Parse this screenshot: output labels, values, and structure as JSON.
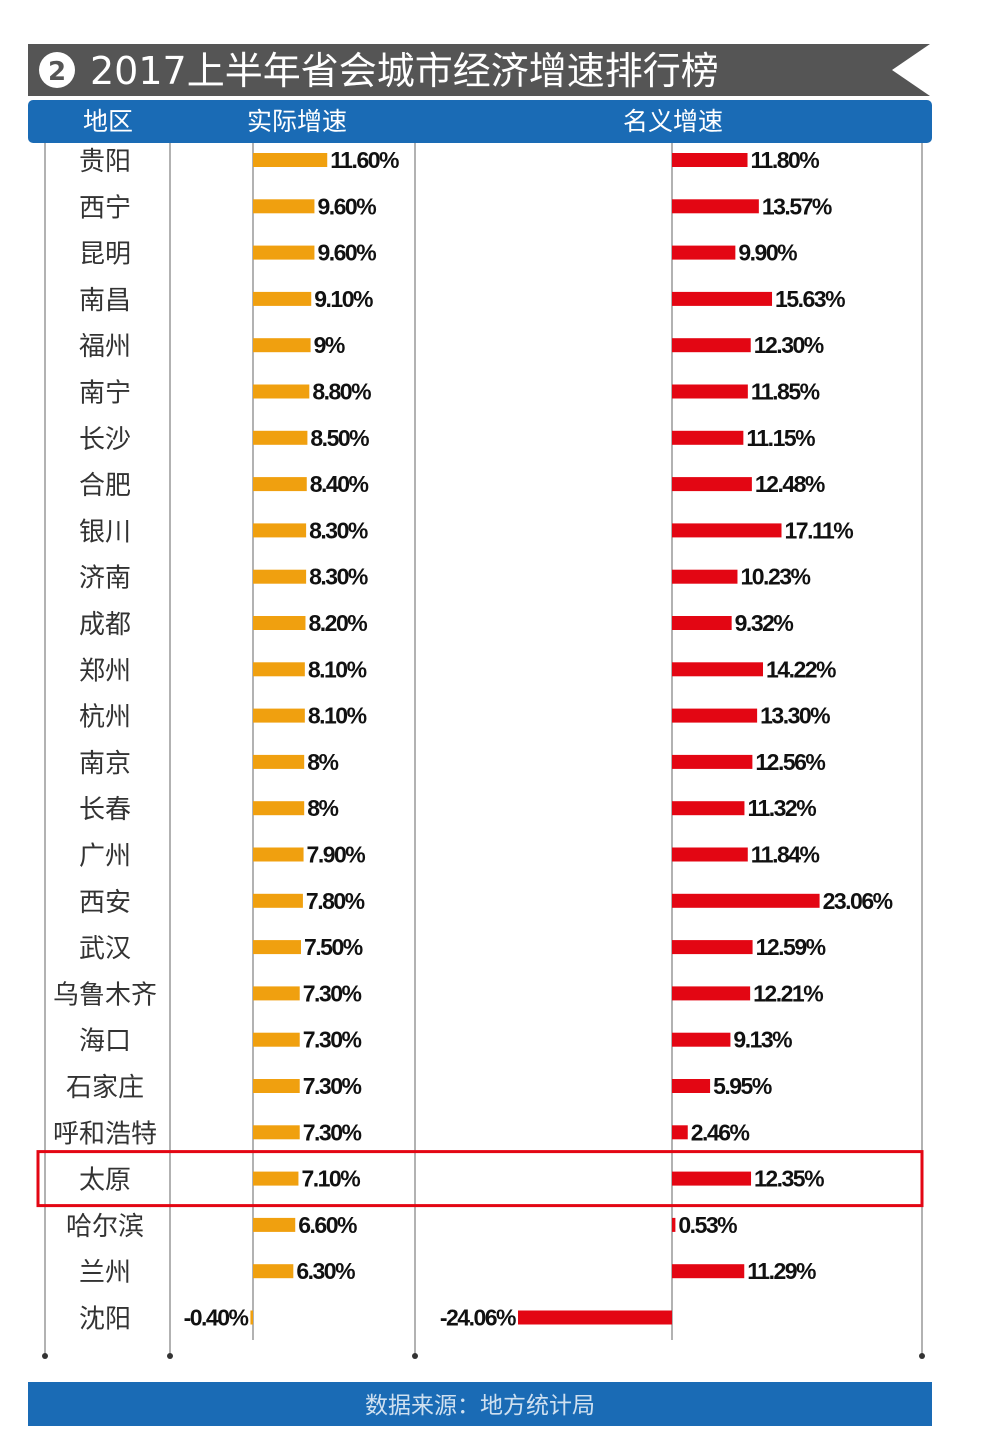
{
  "chart_data": {
    "type": "bar",
    "title": "2017上半年省会城市经济增速排行榜",
    "title_badge": "2",
    "headers": {
      "region": "地区",
      "actual": "实际增速",
      "nominal": "名义增速"
    },
    "categories": [
      "贵阳",
      "西宁",
      "昆明",
      "南昌",
      "福州",
      "南宁",
      "长沙",
      "合肥",
      "银川",
      "济南",
      "成都",
      "郑州",
      "杭州",
      "南京",
      "长春",
      "广州",
      "西安",
      "武汉",
      "乌鲁木齐",
      "海口",
      "石家庄",
      "呼和浩特",
      "太原",
      "哈尔滨",
      "兰州",
      "沈阳"
    ],
    "series": [
      {
        "name": "实际增速",
        "color": "#f0a00f",
        "values": [
          11.6,
          9.6,
          9.6,
          9.1,
          9,
          8.8,
          8.5,
          8.4,
          8.3,
          8.3,
          8.2,
          8.1,
          8.1,
          8,
          8,
          7.9,
          7.8,
          7.5,
          7.3,
          7.3,
          7.3,
          7.3,
          7.1,
          6.6,
          6.3,
          -0.4
        ],
        "labels": [
          "11.60%",
          "9.60%",
          "9.60%",
          "9.10%",
          "9%",
          "8.80%",
          "8.50%",
          "8.40%",
          "8.30%",
          "8.30%",
          "8.20%",
          "8.10%",
          "8.10%",
          "8%",
          "8%",
          "7.90%",
          "7.80%",
          "7.50%",
          "7.30%",
          "7.30%",
          "7.30%",
          "7.30%",
          "7.10%",
          "6.60%",
          "6.30%",
          "-0.40%"
        ]
      },
      {
        "name": "名义增速",
        "color": "#e30613",
        "values": [
          11.8,
          13.57,
          9.9,
          15.63,
          12.3,
          11.85,
          11.15,
          12.48,
          17.11,
          10.23,
          9.32,
          14.22,
          13.3,
          12.56,
          11.32,
          11.84,
          23.06,
          12.59,
          12.21,
          9.13,
          5.95,
          2.46,
          12.35,
          0.53,
          11.29,
          -24.06
        ],
        "labels": [
          "11.80%",
          "13.57%",
          "9.90%",
          "15.63%",
          "12.30%",
          "11.85%",
          "11.15%",
          "12.48%",
          "17.11%",
          "10.23%",
          "9.32%",
          "14.22%",
          "13.30%",
          "12.56%",
          "11.32%",
          "11.84%",
          "23.06%",
          "12.59%",
          "12.21%",
          "9.13%",
          "5.95%",
          "2.46%",
          "12.35%",
          "0.53%",
          "11.29%",
          "-24.06%"
        ]
      }
    ],
    "highlighted_category": "太原",
    "highlight_color": "#e30613",
    "header_color": "#1a6bb5",
    "title_bar_color": "#555555",
    "source": "数据来源：地方统计局"
  }
}
